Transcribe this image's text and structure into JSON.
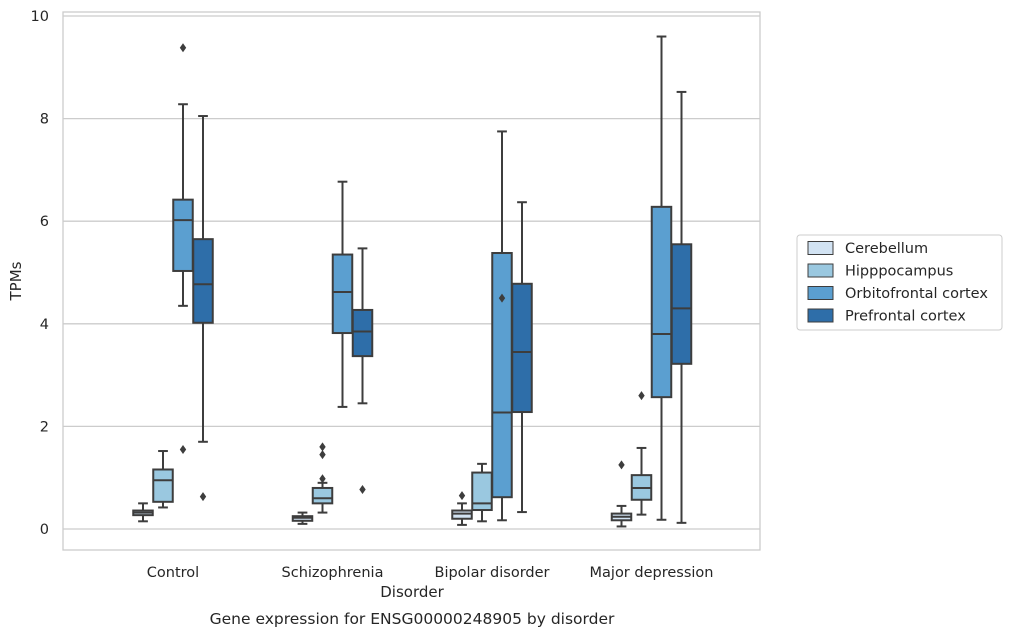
{
  "caption": "Gene expression for ENSG00000248905 by disorder",
  "chart_data": {
    "type": "box",
    "title": "",
    "xlabel": "Disorder",
    "ylabel": "TPMs",
    "categories": [
      "Control",
      "Schizophrenia",
      "Bipolar disorder",
      "Major depression"
    ],
    "ylim": [
      -0.4,
      10.05
    ],
    "yticks": [
      0,
      2,
      4,
      6,
      8,
      10
    ],
    "grid": "horizontal",
    "legend_position": "right",
    "series": [
      {
        "name": "Cerebellum",
        "color": "#d2e3f3",
        "boxes": [
          {
            "whisker_low": 0.15,
            "q1": 0.27,
            "median": 0.32,
            "q3": 0.36,
            "whisker_high": 0.5,
            "outliers": []
          },
          {
            "whisker_low": 0.1,
            "q1": 0.16,
            "median": 0.22,
            "q3": 0.25,
            "whisker_high": 0.32,
            "outliers": []
          },
          {
            "whisker_low": 0.08,
            "q1": 0.2,
            "median": 0.3,
            "q3": 0.36,
            "whisker_high": 0.5,
            "outliers": [
              0.65
            ]
          },
          {
            "whisker_low": 0.05,
            "q1": 0.17,
            "median": 0.24,
            "q3": 0.3,
            "whisker_high": 0.45,
            "outliers": [
              1.25
            ]
          }
        ]
      },
      {
        "name": "Hipppocampus",
        "color": "#9ac8e0",
        "boxes": [
          {
            "whisker_low": 0.42,
            "q1": 0.53,
            "median": 0.95,
            "q3": 1.16,
            "whisker_high": 1.52,
            "outliers": []
          },
          {
            "whisker_low": 0.32,
            "q1": 0.5,
            "median": 0.6,
            "q3": 0.8,
            "whisker_high": 0.9,
            "outliers": [
              1.6,
              1.45,
              0.98
            ]
          },
          {
            "whisker_low": 0.15,
            "q1": 0.37,
            "median": 0.5,
            "q3": 1.1,
            "whisker_high": 1.27,
            "outliers": []
          },
          {
            "whisker_low": 0.28,
            "q1": 0.57,
            "median": 0.8,
            "q3": 1.05,
            "whisker_high": 1.58,
            "outliers": [
              2.6
            ]
          }
        ]
      },
      {
        "name": "Orbitofrontal cortex",
        "color": "#5b9fd0",
        "boxes": [
          {
            "whisker_low": 4.35,
            "q1": 5.03,
            "median": 6.02,
            "q3": 6.42,
            "whisker_high": 8.28,
            "outliers": [
              9.38,
              1.55
            ]
          },
          {
            "whisker_low": 2.38,
            "q1": 3.82,
            "median": 4.62,
            "q3": 5.35,
            "whisker_high": 6.77,
            "outliers": []
          },
          {
            "whisker_low": 0.17,
            "q1": 0.62,
            "median": 2.27,
            "q3": 5.38,
            "whisker_high": 7.75,
            "outliers": [
              4.5
            ]
          },
          {
            "whisker_low": 0.18,
            "q1": 2.57,
            "median": 3.8,
            "q3": 6.28,
            "whisker_high": 9.6,
            "outliers": []
          }
        ]
      },
      {
        "name": "Prefrontal cortex",
        "color": "#2e6ea9",
        "boxes": [
          {
            "whisker_low": 1.7,
            "q1": 4.02,
            "median": 4.77,
            "q3": 5.65,
            "whisker_high": 8.05,
            "outliers": [
              0.63
            ]
          },
          {
            "whisker_low": 2.45,
            "q1": 3.37,
            "median": 3.85,
            "q3": 4.27,
            "whisker_high": 5.47,
            "outliers": [
              0.77
            ]
          },
          {
            "whisker_low": 0.33,
            "q1": 2.28,
            "median": 3.45,
            "q3": 4.78,
            "whisker_high": 6.37,
            "outliers": []
          },
          {
            "whisker_low": 0.12,
            "q1": 3.22,
            "median": 4.3,
            "q3": 5.55,
            "whisker_high": 8.52,
            "outliers": []
          }
        ]
      }
    ]
  },
  "colors": {
    "grid": "#cccccc",
    "frame": "#cccccc",
    "line": "#3d3d3d",
    "legend_border": "#cccccc"
  }
}
